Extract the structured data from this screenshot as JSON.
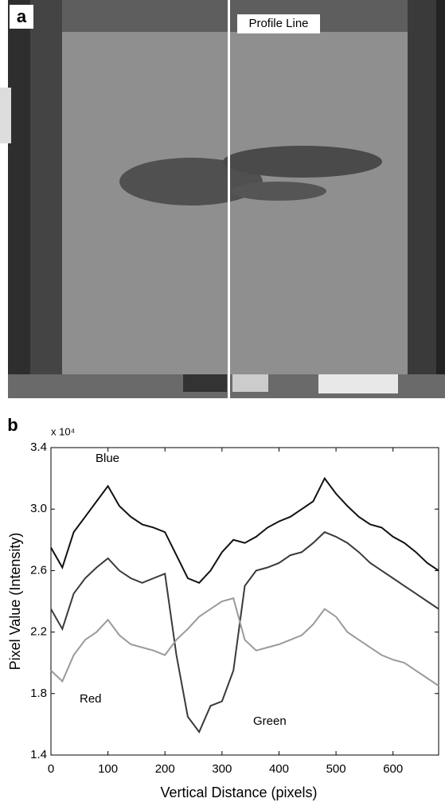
{
  "panel_a": {
    "label": "a",
    "annotation": "Profile Line"
  },
  "chart_data": {
    "type": "line",
    "panel_label": "b",
    "y_multiplier": "x 10⁴",
    "xlabel": "Vertical Distance (pixels)",
    "ylabel": "Pixel Value (Intensity)",
    "xlim": [
      0,
      680
    ],
    "ylim": [
      1.4,
      3.4
    ],
    "xticks": [
      0,
      100,
      200,
      300,
      400,
      500,
      600
    ],
    "yticks": [
      1.4,
      1.8,
      2.2,
      2.6,
      {
        "value": 3,
        "label": "3.0"
      },
      3.4
    ],
    "x": [
      0,
      20,
      40,
      60,
      80,
      100,
      120,
      140,
      160,
      180,
      200,
      220,
      240,
      260,
      280,
      300,
      320,
      340,
      360,
      380,
      400,
      420,
      440,
      460,
      480,
      500,
      520,
      540,
      560,
      580,
      600,
      620,
      640,
      660,
      680
    ],
    "series": [
      {
        "name": "Blue",
        "color": "#111111",
        "values": [
          2.75,
          2.62,
          2.85,
          2.95,
          3.05,
          3.15,
          3.02,
          2.95,
          2.9,
          2.88,
          2.85,
          2.7,
          2.55,
          2.52,
          2.6,
          2.72,
          2.8,
          2.78,
          2.82,
          2.88,
          2.92,
          2.95,
          3.0,
          3.05,
          3.2,
          3.1,
          3.02,
          2.95,
          2.9,
          2.88,
          2.82,
          2.78,
          2.72,
          2.65,
          2.6
        ]
      },
      {
        "name": "Green",
        "color": "#3a3a3a",
        "values": [
          2.35,
          2.22,
          2.45,
          2.55,
          2.62,
          2.68,
          2.6,
          2.55,
          2.52,
          2.55,
          2.58,
          2.05,
          1.65,
          1.55,
          1.72,
          1.75,
          1.95,
          2.5,
          2.6,
          2.62,
          2.65,
          2.7,
          2.72,
          2.78,
          2.85,
          2.82,
          2.78,
          2.72,
          2.65,
          2.6,
          2.55,
          2.5,
          2.45,
          2.4,
          2.35
        ]
      },
      {
        "name": "Red",
        "color": "#9a9a9a",
        "values": [
          1.95,
          1.88,
          2.05,
          2.15,
          2.2,
          2.28,
          2.18,
          2.12,
          2.1,
          2.08,
          2.05,
          2.15,
          2.22,
          2.3,
          2.35,
          2.4,
          2.42,
          2.15,
          2.08,
          2.1,
          2.12,
          2.15,
          2.18,
          2.25,
          2.35,
          2.3,
          2.2,
          2.15,
          2.1,
          2.05,
          2.02,
          2.0,
          1.95,
          1.9,
          1.85
        ]
      }
    ]
  }
}
